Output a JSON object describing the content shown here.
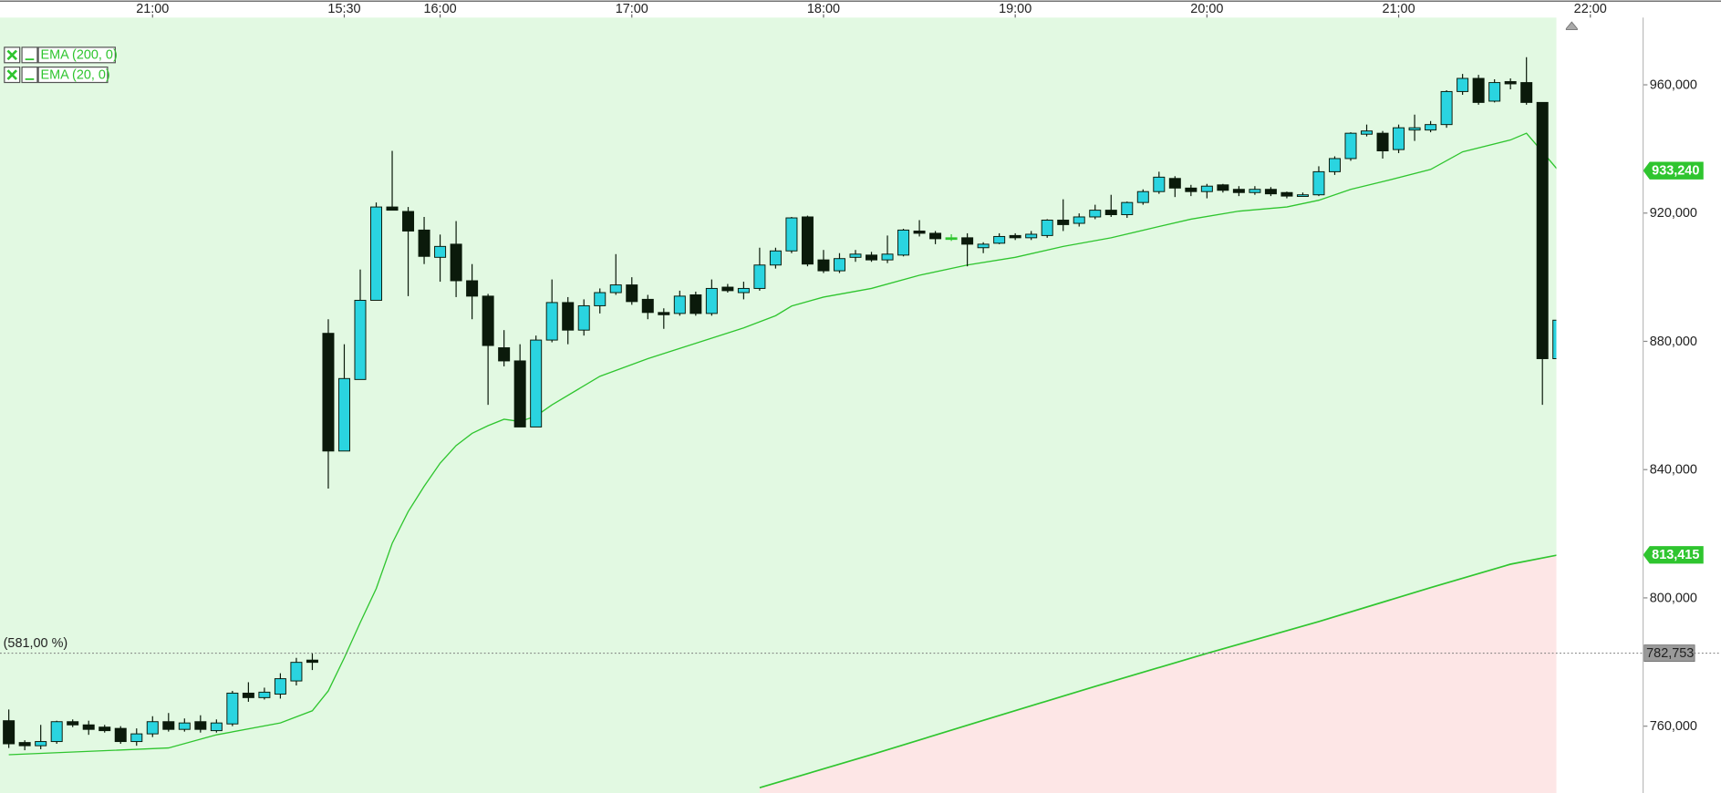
{
  "chart_data": {
    "type": "candlestick",
    "xlim": [
      -0.55,
      102.3
    ],
    "ylim": [
      739500,
      981300
    ],
    "xticks": [
      {
        "value": 9,
        "label": "21:00"
      },
      {
        "value": 21,
        "label": "15:30"
      },
      {
        "value": 27,
        "label": "16:00"
      },
      {
        "value": 39,
        "label": "17:00"
      },
      {
        "value": 51,
        "label": "18:00"
      },
      {
        "value": 63,
        "label": "19:00"
      },
      {
        "value": 75,
        "label": "20:00"
      },
      {
        "value": 87,
        "label": "21:00"
      },
      {
        "value": 99,
        "label": "22:00"
      }
    ],
    "yticks": [
      {
        "value": 760000,
        "label": "760,000"
      },
      {
        "value": 800000,
        "label": "800,000"
      },
      {
        "value": 840000,
        "label": "840,000"
      },
      {
        "value": 880000,
        "label": "880,000"
      },
      {
        "value": 920000,
        "label": "920,000"
      },
      {
        "value": 960000,
        "label": "960,000"
      }
    ],
    "up_color": "#2ad4e0",
    "down_color": "#0b1a0b",
    "doji_color": "#2fc52f",
    "background_color": "#e2f9e2",
    "below_color": "#fde6e6",
    "candles": {
      "open": [
        761700,
        754900,
        753900,
        755200,
        761400,
        760400,
        759700,
        759300,
        755200,
        757600,
        761400,
        759000,
        761400,
        758600,
        760700,
        770300,
        768900,
        770000,
        774100,
        780600,
        882500,
        845800,
        868100,
        892800,
        921900,
        920500,
        914700,
        906200,
        910300,
        898900,
        894100,
        878000,
        873900,
        853300,
        880400,
        892100,
        883500,
        891100,
        895200,
        897600,
        893100,
        889000,
        888700,
        894500,
        888700,
        896900,
        895200,
        896500,
        903800,
        908200,
        918800,
        905400,
        902000,
        906200,
        906900,
        905400,
        906900,
        914400,
        913700,
        912300,
        912300,
        909200,
        910600,
        913000,
        912300,
        913000,
        917800,
        916800,
        918800,
        920900,
        919500,
        923300,
        926700,
        930800,
        927800,
        926700,
        928800,
        927400,
        926400,
        927400,
        926400,
        925300,
        925700,
        932900,
        937000,
        944600,
        944900,
        939800,
        945900,
        945900,
        947600,
        957900,
        962000,
        954900,
        961000,
        960700,
        954500,
        874600
      ],
      "high": [
        765200,
        755600,
        760400,
        761700,
        762100,
        761700,
        760400,
        760000,
        759300,
        763100,
        764100,
        762400,
        763400,
        762100,
        771000,
        773700,
        772000,
        776500,
        781300,
        782700,
        886900,
        879100,
        902400,
        923300,
        939400,
        921900,
        918800,
        913300,
        917500,
        904100,
        894800,
        883500,
        879100,
        881800,
        899300,
        893800,
        893100,
        896500,
        907200,
        900000,
        894500,
        890300,
        895800,
        895500,
        899300,
        897900,
        898600,
        909200,
        909200,
        918800,
        919200,
        908500,
        907500,
        908500,
        907900,
        913000,
        915100,
        917800,
        914400,
        913400,
        913700,
        910900,
        913700,
        913700,
        914400,
        918100,
        924300,
        919900,
        922600,
        925700,
        923600,
        927400,
        932900,
        931500,
        928800,
        929100,
        929100,
        928400,
        928400,
        928100,
        926700,
        926400,
        934600,
        937700,
        945200,
        947600,
        945600,
        947600,
        950700,
        948700,
        958300,
        963400,
        963100,
        961700,
        962000,
        968600,
        954500,
        896500
      ],
      "low": [
        753200,
        752500,
        752800,
        754500,
        759700,
        757300,
        758000,
        754500,
        753900,
        756600,
        758300,
        758300,
        758000,
        758000,
        760000,
        767600,
        768300,
        768600,
        772700,
        777500,
        834100,
        845800,
        868100,
        892800,
        920900,
        894100,
        904100,
        898600,
        893800,
        886900,
        860200,
        872200,
        853300,
        853300,
        879700,
        879100,
        881800,
        888700,
        894500,
        891400,
        886900,
        883900,
        888000,
        888000,
        888000,
        895200,
        893100,
        895800,
        902700,
        907500,
        903400,
        901300,
        901300,
        904800,
        904800,
        904400,
        906500,
        912700,
        910300,
        911300,
        903400,
        907500,
        910300,
        911600,
        911600,
        912300,
        914400,
        915800,
        918100,
        918800,
        918500,
        922600,
        926000,
        925000,
        925300,
        924600,
        926400,
        925300,
        925700,
        925300,
        924600,
        925300,
        925300,
        931900,
        936300,
        943900,
        937000,
        938700,
        942500,
        945200,
        946600,
        956900,
        953800,
        954500,
        958600,
        953800,
        860200,
        865700
      ],
      "close": [
        754500,
        753900,
        755200,
        761400,
        760400,
        759000,
        758600,
        755200,
        757600,
        761400,
        759000,
        761000,
        759000,
        761000,
        770300,
        768900,
        770600,
        774800,
        779900,
        779900,
        845800,
        868400,
        892800,
        921900,
        920900,
        914400,
        906500,
        909600,
        898900,
        894100,
        878700,
        873900,
        853300,
        880400,
        892100,
        883500,
        891100,
        895200,
        897600,
        892400,
        889000,
        888300,
        894100,
        888700,
        896500,
        895800,
        896500,
        903800,
        908200,
        918500,
        904100,
        902000,
        905800,
        907200,
        905400,
        907200,
        914700,
        913700,
        912000,
        912300,
        910300,
        910300,
        912700,
        912300,
        913400,
        917800,
        916400,
        918800,
        920900,
        919500,
        923300,
        926700,
        931200,
        927800,
        926700,
        928400,
        927100,
        926400,
        927400,
        926000,
        925300,
        925700,
        932900,
        937000,
        944900,
        945600,
        939400,
        946600,
        946600,
        947600,
        957900,
        962000,
        954500,
        960700,
        960300,
        954500,
        874600,
        886600
      ]
    },
    "overlays": [
      {
        "name": "EMA (200, 0)",
        "color": "#2fc52f",
        "x": [
          47,
          54,
          61,
          68,
          75,
          82,
          89,
          94,
          97
        ],
        "values": [
          740800,
          751100,
          761800,
          772400,
          782700,
          792600,
          803200,
          810500,
          813415
        ],
        "value_labels": [
          null,
          null,
          null,
          null,
          null,
          null,
          null,
          null,
          "813,415"
        ]
      },
      {
        "name": "EMA (20, 0)",
        "color": "#2fc52f",
        "x": [
          0,
          10,
          13,
          17,
          19,
          20,
          21,
          22,
          23,
          24,
          25,
          26,
          27,
          28,
          29,
          30,
          31,
          32,
          33,
          34,
          37,
          40,
          43,
          46,
          48,
          49,
          51,
          54,
          57,
          60,
          63,
          66,
          69,
          72,
          74,
          77,
          80,
          82,
          84,
          86,
          89,
          91,
          94,
          95,
          96,
          97
        ],
        "values": [
          751100,
          753200,
          757300,
          761000,
          764800,
          771000,
          781300,
          792300,
          802900,
          817000,
          826900,
          834800,
          842000,
          847500,
          851300,
          853700,
          855700,
          855000,
          856700,
          860200,
          869100,
          874600,
          879400,
          884200,
          888000,
          891000,
          893800,
          896500,
          900600,
          903800,
          906200,
          909600,
          912300,
          915800,
          918100,
          920600,
          921900,
          924000,
          927400,
          929800,
          933600,
          939100,
          942800,
          944900,
          939100,
          933240
        ],
        "value_labels": [
          null,
          null,
          null,
          null,
          null,
          null,
          null,
          null,
          null,
          null,
          null,
          null,
          null,
          null,
          null,
          null,
          null,
          null,
          null,
          null,
          null,
          null,
          null,
          null,
          null,
          null,
          null,
          null,
          null,
          null,
          null,
          null,
          null,
          null,
          null,
          null,
          null,
          null,
          null,
          null,
          null,
          null,
          null,
          null,
          null,
          "933,240"
        ]
      }
    ],
    "reference_line": {
      "value": 782753,
      "label": "782,753",
      "percent_label": "(581,00 %)"
    }
  }
}
